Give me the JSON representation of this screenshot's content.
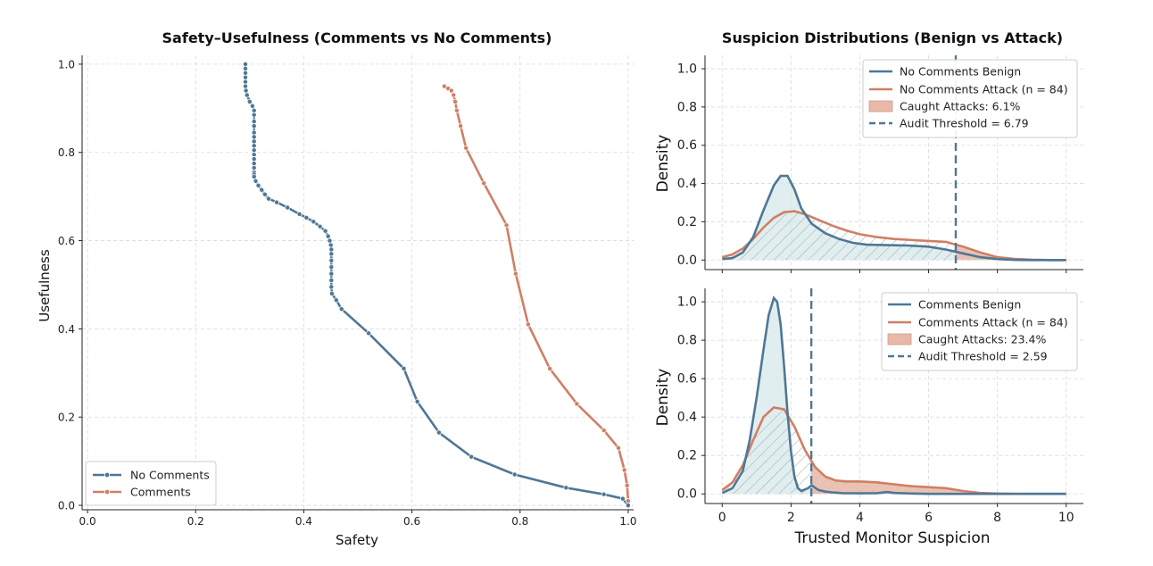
{
  "colors": {
    "blue": "#4f7796",
    "orange": "#cf7f65",
    "benign_fill": "#d6e8ea",
    "caught_fill": "#e8b8a8",
    "hatch": "#9aa8a8"
  },
  "chart_data": [
    {
      "type": "line",
      "title": "Safety–Usefulness (Comments vs No Comments)",
      "xlabel": "Safety",
      "ylabel": "Usefulness",
      "xlim": [
        -0.01,
        1.01
      ],
      "ylim": [
        -0.01,
        1.02
      ],
      "xticks": [
        0.0,
        0.2,
        0.4,
        0.6,
        0.8,
        1.0
      ],
      "yticks": [
        0.0,
        0.2,
        0.4,
        0.6,
        0.8,
        1.0
      ],
      "tick_labels": {
        "x": [
          "0.0",
          "0.2",
          "0.4",
          "0.6",
          "0.8",
          "1.0"
        ],
        "y": [
          "0.0",
          "0.2",
          "0.4",
          "0.6",
          "0.8",
          "1.0"
        ]
      },
      "grid": true,
      "legend_position": "lower-left",
      "series": [
        {
          "name": "No Comments",
          "color": "#4f7796",
          "x": [
            0.292,
            0.292,
            0.292,
            0.292,
            0.292,
            0.292,
            0.293,
            0.295,
            0.3,
            0.305,
            0.308,
            0.308,
            0.308,
            0.308,
            0.308,
            0.308,
            0.308,
            0.308,
            0.308,
            0.308,
            0.308,
            0.308,
            0.308,
            0.308,
            0.308,
            0.308,
            0.311,
            0.316,
            0.322,
            0.328,
            0.335,
            0.35,
            0.37,
            0.392,
            0.405,
            0.418,
            0.43,
            0.44,
            0.445,
            0.448,
            0.45,
            0.451,
            0.451,
            0.451,
            0.451,
            0.451,
            0.451,
            0.451,
            0.452,
            0.46,
            0.47,
            0.52,
            0.585,
            0.61,
            0.65,
            0.71,
            0.79,
            0.885,
            0.955,
            0.99,
            1.0
          ],
          "y": [
            1.0,
            0.99,
            0.98,
            0.97,
            0.96,
            0.95,
            0.94,
            0.93,
            0.915,
            0.905,
            0.895,
            0.885,
            0.87,
            0.86,
            0.845,
            0.835,
            0.825,
            0.815,
            0.805,
            0.795,
            0.785,
            0.775,
            0.765,
            0.755,
            0.75,
            0.745,
            0.735,
            0.725,
            0.715,
            0.705,
            0.695,
            0.687,
            0.675,
            0.66,
            0.652,
            0.643,
            0.632,
            0.622,
            0.61,
            0.6,
            0.59,
            0.58,
            0.57,
            0.555,
            0.54,
            0.525,
            0.51,
            0.495,
            0.48,
            0.465,
            0.445,
            0.39,
            0.31,
            0.235,
            0.165,
            0.11,
            0.07,
            0.04,
            0.025,
            0.015,
            0.0
          ]
        },
        {
          "name": "Comments",
          "color": "#cf7f65",
          "x": [
            0.66,
            0.667,
            0.673,
            0.677,
            0.68,
            0.683,
            0.69,
            0.7,
            0.733,
            0.775,
            0.792,
            0.815,
            0.855,
            0.905,
            0.955,
            0.982,
            0.993,
            0.998,
            1.0
          ],
          "y": [
            0.95,
            0.945,
            0.94,
            0.93,
            0.915,
            0.895,
            0.86,
            0.81,
            0.73,
            0.635,
            0.525,
            0.41,
            0.31,
            0.23,
            0.17,
            0.13,
            0.08,
            0.045,
            0.01
          ]
        }
      ]
    },
    {
      "type": "area",
      "title": "Suspicion Distributions (Benign vs Attack)",
      "ylabel": "Density",
      "xlim": [
        -0.5,
        10.5
      ],
      "ylim": [
        -0.05,
        1.07
      ],
      "xticks": [
        0,
        2,
        4,
        6,
        8,
        10
      ],
      "yticks": [
        0.0,
        0.2,
        0.4,
        0.6,
        0.8,
        1.0
      ],
      "tick_labels": {
        "y": [
          "0.0",
          "0.2",
          "0.4",
          "0.6",
          "0.8",
          "1.0"
        ]
      },
      "grid": true,
      "legend_position": "top-right",
      "audit_threshold": 6.79,
      "legend": [
        "No Comments Benign",
        "No Comments Attack (n = 84)",
        "Caught Attacks: 6.1%",
        "Audit Threshold = 6.79"
      ],
      "series": [
        {
          "name": "No Comments Benign",
          "x": [
            0,
            0.3,
            0.6,
            0.9,
            1.2,
            1.5,
            1.7,
            1.9,
            2.1,
            2.3,
            2.6,
            3.0,
            3.4,
            3.8,
            4.2,
            4.8,
            5.4,
            6.0,
            6.5,
            7.0,
            7.5,
            8.0,
            8.5,
            9.0,
            9.5,
            10.0
          ],
          "values": [
            0.005,
            0.01,
            0.04,
            0.12,
            0.26,
            0.39,
            0.44,
            0.44,
            0.37,
            0.27,
            0.19,
            0.14,
            0.11,
            0.09,
            0.08,
            0.078,
            0.076,
            0.07,
            0.055,
            0.035,
            0.015,
            0.005,
            0.001,
            0.0,
            0.0,
            0.0
          ]
        },
        {
          "name": "No Comments Attack (n = 84)",
          "x": [
            0,
            0.3,
            0.6,
            0.9,
            1.2,
            1.5,
            1.8,
            2.1,
            2.4,
            2.8,
            3.2,
            3.6,
            4.0,
            4.5,
            5.0,
            5.5,
            6.0,
            6.5,
            7.0,
            7.5,
            8.0,
            8.5,
            9.0,
            9.5,
            10.0
          ],
          "values": [
            0.015,
            0.03,
            0.06,
            0.11,
            0.17,
            0.22,
            0.25,
            0.255,
            0.24,
            0.21,
            0.18,
            0.155,
            0.135,
            0.12,
            0.11,
            0.105,
            0.1,
            0.095,
            0.07,
            0.04,
            0.015,
            0.006,
            0.002,
            0.0,
            0.0
          ]
        }
      ]
    },
    {
      "type": "area",
      "xlabel": "Trusted Monitor Suspicion",
      "ylabel": "Density",
      "xlim": [
        -0.5,
        10.5
      ],
      "ylim": [
        -0.05,
        1.07
      ],
      "xticks": [
        0,
        2,
        4,
        6,
        8,
        10
      ],
      "yticks": [
        0.0,
        0.2,
        0.4,
        0.6,
        0.8,
        1.0
      ],
      "tick_labels": {
        "x": [
          "0",
          "2",
          "4",
          "6",
          "8",
          "10"
        ],
        "y": [
          "0.0",
          "0.2",
          "0.4",
          "0.6",
          "0.8",
          "1.0"
        ]
      },
      "grid": true,
      "legend_position": "top-right",
      "audit_threshold": 2.59,
      "legend": [
        "Comments Benign",
        "Comments Attack (n = 84)",
        "Caught Attacks: 23.4%",
        "Audit Threshold = 2.59"
      ],
      "series": [
        {
          "name": "Comments Benign",
          "x": [
            0,
            0.3,
            0.6,
            0.8,
            1.0,
            1.2,
            1.35,
            1.5,
            1.6,
            1.7,
            1.8,
            1.9,
            2.0,
            2.1,
            2.2,
            2.3,
            2.5,
            2.6,
            2.8,
            3.0,
            3.2,
            3.5,
            4.0,
            4.5,
            4.8,
            5.0,
            5.5,
            6.0,
            7.0,
            8.0,
            9.0,
            10.0
          ],
          "values": [
            0.005,
            0.03,
            0.12,
            0.28,
            0.5,
            0.75,
            0.93,
            1.02,
            1.0,
            0.88,
            0.66,
            0.42,
            0.22,
            0.09,
            0.03,
            0.015,
            0.03,
            0.045,
            0.02,
            0.012,
            0.008,
            0.004,
            0.003,
            0.004,
            0.01,
            0.005,
            0.002,
            0.0,
            0.0,
            0.0,
            0.0,
            0.0
          ]
        },
        {
          "name": "Comments Attack (n = 84)",
          "x": [
            0,
            0.3,
            0.6,
            0.9,
            1.2,
            1.5,
            1.8,
            2.1,
            2.4,
            2.7,
            3.0,
            3.3,
            3.6,
            4.0,
            4.5,
            5.0,
            5.5,
            6.0,
            6.5,
            7.0,
            7.5,
            8.0,
            8.5,
            9.0,
            10.0
          ],
          "values": [
            0.02,
            0.06,
            0.15,
            0.28,
            0.4,
            0.45,
            0.44,
            0.35,
            0.23,
            0.14,
            0.09,
            0.07,
            0.065,
            0.065,
            0.06,
            0.05,
            0.04,
            0.035,
            0.03,
            0.015,
            0.005,
            0.002,
            0.0,
            0.0,
            0.0
          ]
        }
      ]
    }
  ]
}
